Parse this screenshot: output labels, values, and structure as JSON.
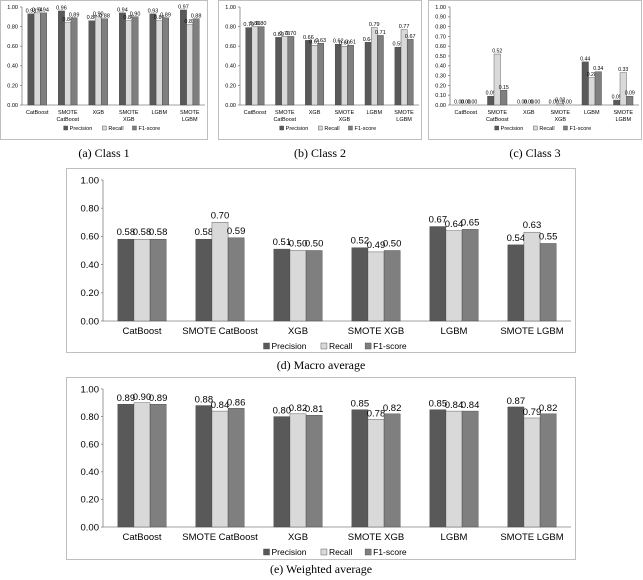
{
  "colors": {
    "precision": "#595959",
    "recall": "#d9d9d9",
    "f1": "#7f7f7f",
    "edge": "#404040",
    "axis": "#808080",
    "frame": "#bfbfbf"
  },
  "legend_labels": [
    "Precision",
    "Recall",
    "F1-score"
  ],
  "chart_data": [
    {
      "type": "bar",
      "caption": "(a) Class 1",
      "categories": [
        [
          "CatBoost"
        ],
        [
          "SMOTE",
          "CatBoost"
        ],
        [
          "XGB"
        ],
        [
          "SMOTE",
          "XGB"
        ],
        [
          "LGBM"
        ],
        [
          "SMOTE",
          "LGBM"
        ]
      ],
      "series": [
        {
          "name": "Precision",
          "values": [
            0.93,
            0.96,
            0.86,
            0.94,
            0.93,
            0.97
          ],
          "labels": [
            "0.93",
            "0.96",
            "0.86",
            "0.94",
            "0.93",
            "0.97"
          ]
        },
        {
          "name": "Recall",
          "values": [
            0.94,
            0.84,
            0.9,
            0.86,
            0.86,
            0.82
          ],
          "labels": [
            "0.94",
            "0.84",
            "0.90",
            "0.86",
            "0.86",
            "0.82"
          ]
        },
        {
          "name": "F1-score",
          "values": [
            0.94,
            0.89,
            0.88,
            0.9,
            0.89,
            0.88
          ],
          "labels": [
            "0.94",
            "0.89",
            "0.88",
            "0.90",
            "0.89",
            "0.88"
          ]
        }
      ],
      "y_ticks": [
        "0.00",
        "0.20",
        "0.40",
        "0.60",
        "0.80",
        "1.00"
      ],
      "ylim": [
        0,
        1
      ],
      "legend": "bottom"
    },
    {
      "type": "bar",
      "caption": "(b) Class 2",
      "categories": [
        [
          "CatBoost"
        ],
        [
          "SMOTE",
          "CatBoost"
        ],
        [
          "XGB"
        ],
        [
          "SMOTE",
          "XGB"
        ],
        [
          "LGBM"
        ],
        [
          "SMOTE",
          "LGBM"
        ]
      ],
      "series": [
        {
          "name": "Precision",
          "values": [
            0.79,
            0.69,
            0.66,
            0.62,
            0.64,
            0.59
          ],
          "labels": [
            "0.79",
            "0.69",
            "0.66",
            "0.62",
            "0.64",
            "0.59"
          ]
        },
        {
          "name": "Recall",
          "values": [
            0.8,
            0.7,
            0.61,
            0.6,
            0.79,
            0.77
          ],
          "labels": [
            "0.80",
            "0.70",
            "0.61",
            "0.60",
            "0.79",
            "0.77"
          ]
        },
        {
          "name": "F1-score",
          "values": [
            0.8,
            0.7,
            0.63,
            0.61,
            0.71,
            0.67
          ],
          "labels": [
            "0.80",
            "0.70",
            "0.63",
            "0.61",
            "0.71",
            "0.67"
          ]
        }
      ],
      "y_ticks": [
        "0.00",
        "0.20",
        "0.40",
        "0.60",
        "0.80",
        "1.00"
      ],
      "ylim": [
        0,
        1
      ],
      "legend": "bottom"
    },
    {
      "type": "bar",
      "caption": "(c) Class 3",
      "categories": [
        [
          "CatBoost"
        ],
        [
          "SMOTE",
          "CatBoost"
        ],
        [
          "XGB"
        ],
        [
          "SMOTE",
          "XGB"
        ],
        [
          "LGBM"
        ],
        [
          "SMOTE",
          "LGBM"
        ]
      ],
      "series": [
        {
          "name": "Precision",
          "values": [
            0.0,
            0.09,
            0.0,
            0.0,
            0.44,
            0.05
          ],
          "labels": [
            "0.00",
            "0.09",
            "0.00",
            "0.00",
            "0.44",
            "0.05"
          ]
        },
        {
          "name": "Recall",
          "values": [
            0.0,
            0.52,
            0.0,
            0.02,
            0.28,
            0.33
          ],
          "labels": [
            "0.00",
            "0.52",
            "0.00",
            "0.02",
            "0.28",
            "0.33"
          ]
        },
        {
          "name": "F1-score",
          "values": [
            0.0,
            0.15,
            0.0,
            0.0,
            0.34,
            0.09
          ],
          "labels": [
            "0.00",
            "0.15",
            "0.00",
            "0.00",
            "0.34",
            "0.09"
          ]
        }
      ],
      "y_ticks": [
        "0.00",
        "0.10",
        "0.20",
        "0.30",
        "0.40",
        "0.50",
        "0.60",
        "0.70",
        "0.80",
        "0.90",
        "1.00"
      ],
      "ylim": [
        0,
        1
      ],
      "legend": "bottom"
    },
    {
      "type": "bar",
      "caption": "(d) Macro average",
      "categories": [
        [
          "CatBoost"
        ],
        [
          "SMOTE CatBoost"
        ],
        [
          "XGB"
        ],
        [
          "SMOTE  XGB"
        ],
        [
          "LGBM"
        ],
        [
          "SMOTE LGBM"
        ]
      ],
      "series": [
        {
          "name": "Precision",
          "values": [
            0.58,
            0.58,
            0.51,
            0.52,
            0.67,
            0.54
          ],
          "labels": [
            "0.58",
            "0.58",
            "0.51",
            "0.52",
            "0.67",
            "0.54"
          ]
        },
        {
          "name": "Recall",
          "values": [
            0.58,
            0.7,
            0.5,
            0.49,
            0.64,
            0.63
          ],
          "labels": [
            "0.58",
            "0.70",
            "0.50",
            "0.49",
            "0.64",
            "0.63"
          ]
        },
        {
          "name": "F1-score",
          "values": [
            0.58,
            0.59,
            0.5,
            0.5,
            0.65,
            0.55
          ],
          "labels": [
            "0.58",
            "0.59",
            "0.50",
            "0.50",
            "0.65",
            "0.55"
          ]
        }
      ],
      "y_ticks": [
        "0.00",
        "0.20",
        "0.40",
        "0.60",
        "0.80",
        "1.00"
      ],
      "ylim": [
        0,
        1
      ],
      "legend": "bottom"
    },
    {
      "type": "bar",
      "caption": "(e) Weighted average",
      "categories": [
        [
          "CatBoost"
        ],
        [
          "SMOTE CatBoost"
        ],
        [
          "XGB"
        ],
        [
          "SMOTE  XGB"
        ],
        [
          "LGBM"
        ],
        [
          "SMOTE LGBM"
        ]
      ],
      "series": [
        {
          "name": "Precision",
          "values": [
            0.89,
            0.88,
            0.8,
            0.85,
            0.85,
            0.87
          ],
          "labels": [
            "0.89",
            "0.88",
            "0.80",
            "0.85",
            "0.85",
            "0.87"
          ]
        },
        {
          "name": "Recall",
          "values": [
            0.9,
            0.84,
            0.82,
            0.78,
            0.84,
            0.79
          ],
          "labels": [
            "0.90",
            "0.84",
            "0.82",
            "0.78",
            "0.84",
            "0.79"
          ]
        },
        {
          "name": "F1-score",
          "values": [
            0.89,
            0.86,
            0.81,
            0.82,
            0.84,
            0.82
          ],
          "labels": [
            "0.89",
            "0.86",
            "0.81",
            "0.82",
            "0.84",
            "0.82"
          ]
        }
      ],
      "y_ticks": [
        "0.00",
        "0.20",
        "0.40",
        "0.60",
        "0.80",
        "1.00"
      ],
      "ylim": [
        0,
        1
      ],
      "legend": "bottom"
    }
  ]
}
